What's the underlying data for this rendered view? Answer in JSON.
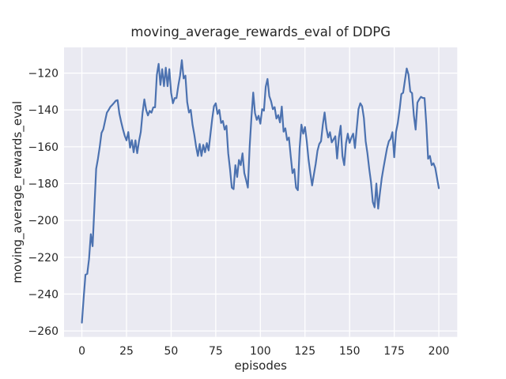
{
  "chart_data": {
    "type": "line",
    "title": "moving_average_rewards_eval of DDPG",
    "xlabel": "episodes",
    "ylabel": "moving_average_rewards_eval",
    "grid": true,
    "legend": false,
    "xlim": [
      -10,
      210.3
    ],
    "ylim": [
      -263.25,
      -106.05
    ],
    "xticks": [
      0,
      25,
      50,
      75,
      100,
      125,
      150,
      175,
      200
    ],
    "yticks": [
      -120,
      -140,
      -160,
      -180,
      -200,
      -220,
      -240,
      -260
    ],
    "style": {
      "fig_bg": "#ffffff",
      "plot_bg": "#eaeaf2",
      "grid_color": "#ffffff",
      "text_color": "#262626",
      "line_color": "#4c72b0"
    },
    "series": [
      {
        "name": "moving_average_rewards_eval",
        "color": "#4c72b0",
        "x_start": 0,
        "x_step": 1,
        "values": [
          -255.5,
          -242,
          -229.5,
          -229,
          -221,
          -207.5,
          -214,
          -193,
          -172,
          -166.5,
          -160,
          -152.5,
          -150.5,
          -146,
          -141.5,
          -140,
          -138.3,
          -137.3,
          -136.2,
          -135,
          -134.7,
          -142,
          -146.5,
          -150.5,
          -154,
          -156.5,
          -152,
          -160.5,
          -156.4,
          -163,
          -156.5,
          -163.5,
          -157,
          -152,
          -141.5,
          -134.3,
          -140,
          -143,
          -140.5,
          -141.5,
          -138.6,
          -138.6,
          -121,
          -115,
          -126.4,
          -117.9,
          -127.1,
          -117.1,
          -127.1,
          -117.9,
          -130.7,
          -136.4,
          -133.6,
          -133.6,
          -127,
          -121.4,
          -113,
          -122.9,
          -121.4,
          -135.7,
          -141.4,
          -140,
          -148,
          -153.5,
          -160,
          -165,
          -158.5,
          -165,
          -159,
          -163,
          -158,
          -162,
          -153.5,
          -145,
          -138,
          -136.4,
          -142.2,
          -140,
          -147.1,
          -146,
          -150.7,
          -148.6,
          -163.6,
          -172.2,
          -182.2,
          -183,
          -170,
          -176.4,
          -167.2,
          -170,
          -163.6,
          -174.3,
          -178,
          -182.2,
          -160,
          -144,
          -130.6,
          -141.8,
          -145.4,
          -143.2,
          -147.5,
          -139.6,
          -140.4,
          -127.5,
          -123.2,
          -132.5,
          -135.3,
          -139.6,
          -138.5,
          -144.7,
          -142.8,
          -146.8,
          -138.2,
          -151.8,
          -150,
          -156.4,
          -155,
          -165,
          -174.3,
          -172.2,
          -182.2,
          -183.6,
          -160.7,
          -148,
          -152.9,
          -149.3,
          -157,
          -167,
          -174.3,
          -181,
          -175,
          -169.3,
          -162.2,
          -158.5,
          -157,
          -148,
          -141.4,
          -150,
          -155,
          -152.1,
          -157.6,
          -156,
          -154.3,
          -166.4,
          -155,
          -148.6,
          -165,
          -170,
          -158,
          -152.9,
          -157.9,
          -155,
          -152.9,
          -160.7,
          -150,
          -139.5,
          -136.4,
          -138,
          -144.3,
          -157,
          -163.6,
          -172,
          -179.3,
          -190,
          -192.9,
          -180,
          -193.6,
          -185,
          -177.2,
          -171.4,
          -166,
          -160.7,
          -157,
          -155.7,
          -152.1,
          -165.7,
          -152,
          -147.1,
          -140,
          -131.4,
          -130.7,
          -124,
          -117.5,
          -120.7,
          -130,
          -130.9,
          -143,
          -150.7,
          -136,
          -134.3,
          -132.9,
          -133.5,
          -133.6,
          -148,
          -166.5,
          -165,
          -170,
          -169,
          -171.5,
          -177,
          -182.5
        ]
      }
    ]
  }
}
